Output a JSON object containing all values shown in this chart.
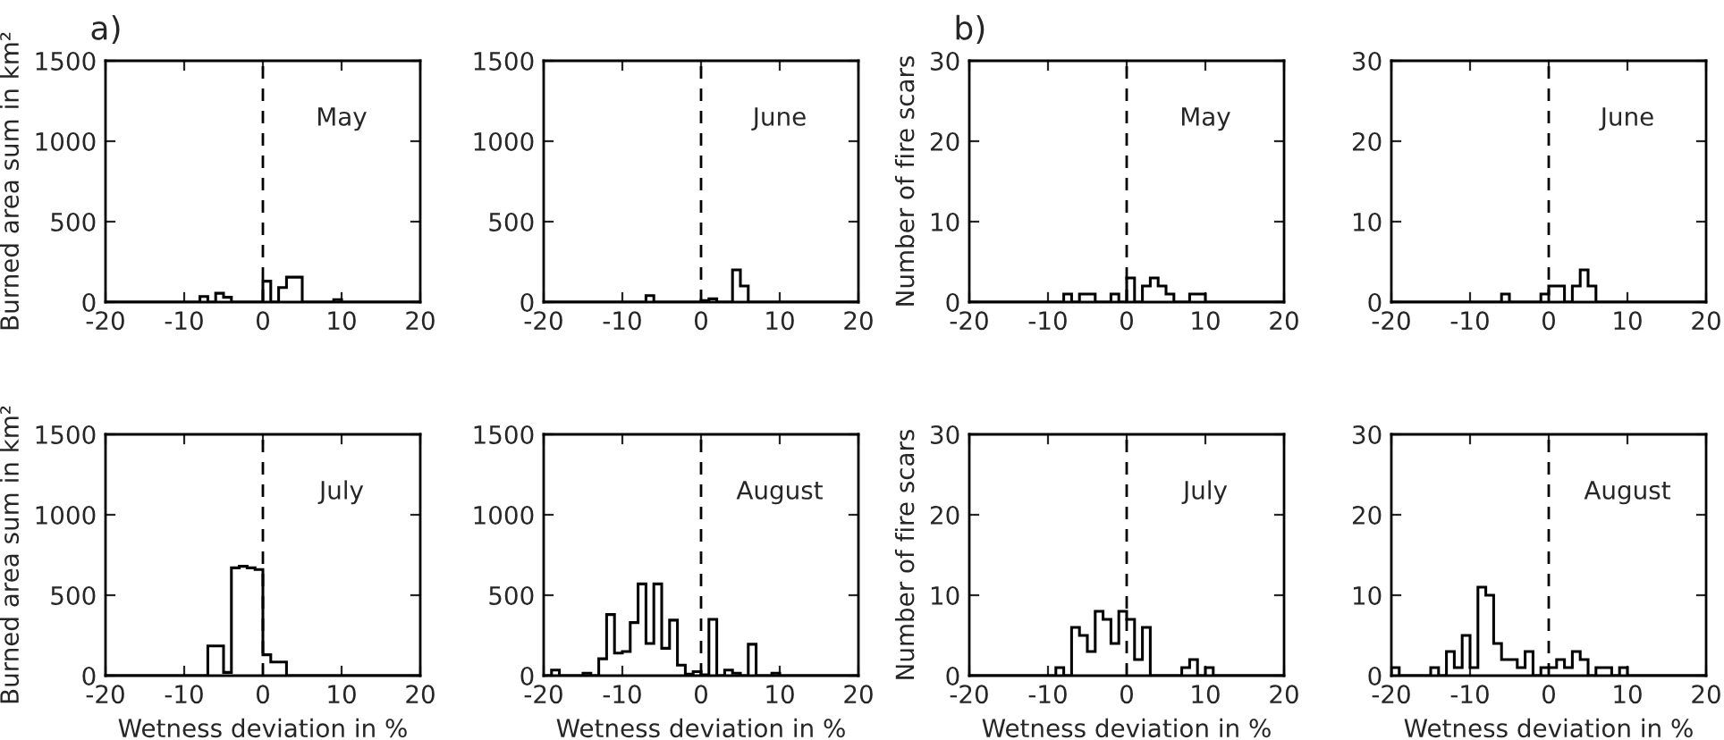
{
  "chart_data": [
    {
      "type": "histogram",
      "annotations": [
        "a)",
        "May"
      ],
      "ylabel": "Burned area sum in km²",
      "bins": [
        -20,
        -19,
        -18,
        -17,
        -16,
        -15,
        -14,
        -13,
        -12,
        -11,
        -10,
        -9,
        -8,
        -7,
        -6,
        -5,
        -4,
        -3,
        -2,
        -1,
        0,
        1,
        2,
        3,
        4,
        5,
        6,
        7,
        8,
        9,
        10,
        11,
        12,
        13,
        14,
        15,
        16,
        17,
        18,
        19,
        20
      ],
      "values": [
        0,
        0,
        0,
        0,
        0,
        0,
        0,
        0,
        0,
        0,
        0,
        0,
        35,
        0,
        55,
        30,
        0,
        0,
        0,
        0,
        130,
        0,
        90,
        155,
        155,
        0,
        0,
        0,
        0,
        15,
        0,
        0,
        0,
        0,
        0,
        0,
        0,
        0,
        0,
        0
      ],
      "color": "#000000",
      "xlim": [
        -20,
        20
      ],
      "xticks": [
        -20,
        -10,
        0,
        10,
        20
      ],
      "ylim": [
        0,
        1500
      ],
      "yticks": [
        0,
        500,
        1000,
        1500
      ],
      "ref_lines": [
        {
          "axis": "x",
          "value": 0,
          "line_style": "dashed"
        }
      ],
      "grid": false
    },
    {
      "type": "histogram",
      "annotations": [
        "June"
      ],
      "bins": [
        -20,
        -19,
        -18,
        -17,
        -16,
        -15,
        -14,
        -13,
        -12,
        -11,
        -10,
        -9,
        -8,
        -7,
        -6,
        -5,
        -4,
        -3,
        -2,
        -1,
        0,
        1,
        2,
        3,
        4,
        5,
        6,
        7,
        8,
        9,
        10,
        11,
        12,
        13,
        14,
        15,
        16,
        17,
        18,
        19,
        20
      ],
      "values": [
        0,
        0,
        0,
        0,
        0,
        0,
        0,
        0,
        0,
        0,
        0,
        0,
        0,
        40,
        0,
        0,
        0,
        0,
        0,
        0,
        10,
        20,
        0,
        0,
        200,
        100,
        0,
        0,
        0,
        0,
        0,
        0,
        0,
        0,
        0,
        0,
        0,
        0,
        0,
        0
      ],
      "color": "#000000",
      "xlim": [
        -20,
        20
      ],
      "xticks": [
        -20,
        -10,
        0,
        10,
        20
      ],
      "ylim": [
        0,
        1500
      ],
      "yticks": [
        0,
        500,
        1000,
        1500
      ],
      "ref_lines": [
        {
          "axis": "x",
          "value": 0,
          "line_style": "dashed"
        }
      ],
      "grid": false
    },
    {
      "type": "histogram",
      "annotations": [
        "b)",
        "May"
      ],
      "ylabel": "Number of fire scars",
      "bins": [
        -20,
        -19,
        -18,
        -17,
        -16,
        -15,
        -14,
        -13,
        -12,
        -11,
        -10,
        -9,
        -8,
        -7,
        -6,
        -5,
        -4,
        -3,
        -2,
        -1,
        0,
        1,
        2,
        3,
        4,
        5,
        6,
        7,
        8,
        9,
        10,
        11,
        12,
        13,
        14,
        15,
        16,
        17,
        18,
        19,
        20
      ],
      "values": [
        0,
        0,
        0,
        0,
        0,
        0,
        0,
        0,
        0,
        0,
        0,
        0,
        1,
        0,
        1,
        1,
        0,
        0,
        1,
        0,
        3,
        0,
        2,
        3,
        2,
        1,
        0,
        0,
        1,
        1,
        0,
        0,
        0,
        0,
        0,
        0,
        0,
        0,
        0,
        0
      ],
      "color": "#000000",
      "xlim": [
        -20,
        20
      ],
      "xticks": [
        -20,
        -10,
        0,
        10,
        20
      ],
      "ylim": [
        0,
        30
      ],
      "yticks": [
        0,
        10,
        20,
        30
      ],
      "ref_lines": [
        {
          "axis": "x",
          "value": 0,
          "line_style": "dashed"
        }
      ],
      "grid": false
    },
    {
      "type": "histogram",
      "annotations": [
        "June"
      ],
      "bins": [
        -20,
        -19,
        -18,
        -17,
        -16,
        -15,
        -14,
        -13,
        -12,
        -11,
        -10,
        -9,
        -8,
        -7,
        -6,
        -5,
        -4,
        -3,
        -2,
        -1,
        0,
        1,
        2,
        3,
        4,
        5,
        6,
        7,
        8,
        9,
        10,
        11,
        12,
        13,
        14,
        15,
        16,
        17,
        18,
        19,
        20
      ],
      "values": [
        0,
        0,
        0,
        0,
        0,
        0,
        0,
        0,
        0,
        0,
        0,
        0,
        0,
        0,
        1,
        0,
        0,
        0,
        0,
        1,
        2,
        2,
        0,
        2,
        4,
        2,
        0,
        0,
        0,
        0,
        0,
        0,
        0,
        0,
        0,
        0,
        0,
        0,
        0,
        0
      ],
      "color": "#000000",
      "xlim": [
        -20,
        20
      ],
      "xticks": [
        -20,
        -10,
        0,
        10,
        20
      ],
      "ylim": [
        0,
        30
      ],
      "yticks": [
        0,
        10,
        20,
        30
      ],
      "ref_lines": [
        {
          "axis": "x",
          "value": 0,
          "line_style": "dashed"
        }
      ],
      "grid": false
    },
    {
      "type": "histogram",
      "annotations": [
        "July"
      ],
      "ylabel": "Burned area sum in km²",
      "xlabel": "Wetness deviation in %",
      "bins": [
        -20,
        -19,
        -18,
        -17,
        -16,
        -15,
        -14,
        -13,
        -12,
        -11,
        -10,
        -9,
        -8,
        -7,
        -6,
        -5,
        -4,
        -3,
        -2,
        -1,
        0,
        1,
        2,
        3,
        4,
        5,
        6,
        7,
        8,
        9,
        10,
        11,
        12,
        13,
        14,
        15,
        16,
        17,
        18,
        19,
        20
      ],
      "values": [
        0,
        0,
        0,
        0,
        0,
        0,
        0,
        0,
        0,
        0,
        0,
        0,
        0,
        185,
        185,
        20,
        670,
        680,
        670,
        660,
        130,
        85,
        85,
        0,
        0,
        0,
        0,
        0,
        0,
        0,
        0,
        0,
        0,
        0,
        0,
        0,
        0,
        0,
        0,
        0
      ],
      "color": "#000000",
      "xlim": [
        -20,
        20
      ],
      "xticks": [
        -20,
        -10,
        0,
        10,
        20
      ],
      "ylim": [
        0,
        1500
      ],
      "yticks": [
        0,
        500,
        1000,
        1500
      ],
      "ref_lines": [
        {
          "axis": "x",
          "value": 0,
          "line_style": "dashed"
        }
      ],
      "grid": false
    },
    {
      "type": "histogram",
      "annotations": [
        "August"
      ],
      "xlabel": "Wetness deviation in %",
      "bins": [
        -20,
        -19,
        -18,
        -17,
        -16,
        -15,
        -14,
        -13,
        -12,
        -11,
        -10,
        -9,
        -8,
        -7,
        -6,
        -5,
        -4,
        -3,
        -2,
        -1,
        0,
        1,
        2,
        3,
        4,
        5,
        6,
        7,
        8,
        9,
        10,
        11,
        12,
        13,
        14,
        15,
        16,
        17,
        18,
        19,
        20
      ],
      "values": [
        0,
        35,
        0,
        0,
        0,
        15,
        0,
        105,
        380,
        140,
        150,
        330,
        570,
        200,
        570,
        170,
        345,
        65,
        10,
        25,
        5,
        350,
        0,
        35,
        15,
        0,
        195,
        0,
        0,
        15,
        0,
        0,
        0,
        0,
        0,
        0,
        0,
        0,
        0,
        0
      ],
      "color": "#000000",
      "xlim": [
        -20,
        20
      ],
      "xticks": [
        -20,
        -10,
        0,
        10,
        20
      ],
      "ylim": [
        0,
        1500
      ],
      "yticks": [
        0,
        500,
        1000,
        1500
      ],
      "ref_lines": [
        {
          "axis": "x",
          "value": 0,
          "line_style": "dashed"
        }
      ],
      "grid": false
    },
    {
      "type": "histogram",
      "annotations": [
        "July"
      ],
      "ylabel": "Number of fire scars",
      "xlabel": "Wetness deviation in %",
      "bins": [
        -20,
        -19,
        -18,
        -17,
        -16,
        -15,
        -14,
        -13,
        -12,
        -11,
        -10,
        -9,
        -8,
        -7,
        -6,
        -5,
        -4,
        -3,
        -2,
        -1,
        0,
        1,
        2,
        3,
        4,
        5,
        6,
        7,
        8,
        9,
        10,
        11,
        12,
        13,
        14,
        15,
        16,
        17,
        18,
        19,
        20
      ],
      "values": [
        0,
        0,
        0,
        0,
        0,
        0,
        0,
        0,
        0,
        0,
        0,
        1,
        0,
        6,
        5,
        3,
        8,
        7,
        4,
        8,
        7,
        2,
        6,
        0,
        0,
        0,
        0,
        1,
        2,
        0,
        1,
        0,
        0,
        0,
        0,
        0,
        0,
        0,
        0,
        0
      ],
      "color": "#000000",
      "xlim": [
        -20,
        20
      ],
      "xticks": [
        -20,
        -10,
        0,
        10,
        20
      ],
      "ylim": [
        0,
        30
      ],
      "yticks": [
        0,
        10,
        20,
        30
      ],
      "ref_lines": [
        {
          "axis": "x",
          "value": 0,
          "line_style": "dashed"
        }
      ],
      "grid": false
    },
    {
      "type": "histogram",
      "annotations": [
        "August"
      ],
      "xlabel": "Wetness deviation in %",
      "bins": [
        -20,
        -19,
        -18,
        -17,
        -16,
        -15,
        -14,
        -13,
        -12,
        -11,
        -10,
        -9,
        -8,
        -7,
        -6,
        -5,
        -4,
        -3,
        -2,
        -1,
        0,
        1,
        2,
        3,
        4,
        5,
        6,
        7,
        8,
        9,
        10,
        11,
        12,
        13,
        14,
        15,
        16,
        17,
        18,
        19,
        20
      ],
      "values": [
        1,
        0,
        0,
        0,
        0,
        1,
        0,
        3,
        1,
        5,
        1,
        11,
        10,
        4,
        2,
        2,
        1,
        3,
        0,
        1,
        1,
        2,
        1,
        3,
        2,
        0,
        1,
        1,
        0,
        1,
        0,
        0,
        0,
        0,
        0,
        0,
        0,
        0,
        0,
        0
      ],
      "color": "#000000",
      "xlim": [
        -20,
        20
      ],
      "xticks": [
        -20,
        -10,
        0,
        10,
        20
      ],
      "ylim": [
        0,
        30
      ],
      "yticks": [
        0,
        10,
        20,
        30
      ],
      "ref_lines": [
        {
          "axis": "x",
          "value": 0,
          "line_style": "dashed"
        }
      ],
      "grid": false
    }
  ]
}
